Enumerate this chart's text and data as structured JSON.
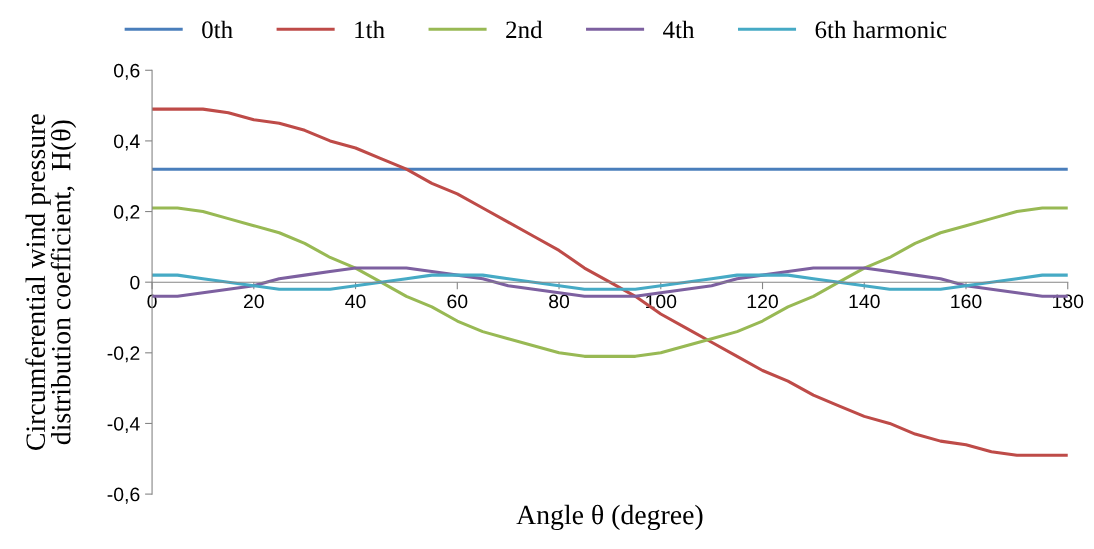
{
  "chart_data": {
    "type": "line",
    "xlabel": "Angle θ (degree)",
    "ylabel": "Circumferential wind pressure\ndistribution coefficient,  H(θ)",
    "x": [
      0,
      5,
      10,
      15,
      20,
      25,
      30,
      35,
      40,
      45,
      50,
      55,
      60,
      65,
      70,
      75,
      80,
      85,
      90,
      95,
      100,
      105,
      110,
      115,
      120,
      125,
      130,
      135,
      140,
      145,
      150,
      155,
      160,
      165,
      170,
      175,
      180
    ],
    "series": [
      {
        "name": "0th",
        "color": "#4a7ebb",
        "values": [
          0.32,
          0.32,
          0.32,
          0.32,
          0.32,
          0.32,
          0.32,
          0.32,
          0.32,
          0.32,
          0.32,
          0.32,
          0.32,
          0.32,
          0.32,
          0.32,
          0.32,
          0.32,
          0.32,
          0.32,
          0.32,
          0.32,
          0.32,
          0.32,
          0.32,
          0.32,
          0.32,
          0.32,
          0.32,
          0.32,
          0.32,
          0.32,
          0.32,
          0.32,
          0.32,
          0.32,
          0.32
        ]
      },
      {
        "name": "1th",
        "color": "#be4b48",
        "values": [
          0.49,
          0.49,
          0.49,
          0.48,
          0.46,
          0.45,
          0.43,
          0.4,
          0.38,
          0.35,
          0.32,
          0.28,
          0.25,
          0.21,
          0.17,
          0.13,
          0.09,
          0.04,
          0.0,
          -0.04,
          -0.09,
          -0.13,
          -0.17,
          -0.21,
          -0.25,
          -0.28,
          -0.32,
          -0.35,
          -0.38,
          -0.4,
          -0.43,
          -0.45,
          -0.46,
          -0.48,
          -0.49,
          -0.49,
          -0.49
        ]
      },
      {
        "name": "2nd",
        "color": "#98b954",
        "values": [
          0.21,
          0.21,
          0.2,
          0.18,
          0.16,
          0.14,
          0.11,
          0.07,
          0.04,
          0.0,
          -0.04,
          -0.07,
          -0.11,
          -0.14,
          -0.16,
          -0.18,
          -0.2,
          -0.21,
          -0.21,
          -0.21,
          -0.2,
          -0.18,
          -0.16,
          -0.14,
          -0.11,
          -0.07,
          -0.04,
          0.0,
          0.04,
          0.07,
          0.11,
          0.14,
          0.16,
          0.18,
          0.2,
          0.21,
          0.21
        ]
      },
      {
        "name": "4th",
        "color": "#7d60a0",
        "values": [
          -0.04,
          -0.04,
          -0.03,
          -0.02,
          -0.01,
          0.01,
          0.02,
          0.03,
          0.04,
          0.04,
          0.04,
          0.03,
          0.02,
          0.01,
          -0.01,
          -0.02,
          -0.03,
          -0.04,
          -0.04,
          -0.04,
          -0.03,
          -0.02,
          -0.01,
          0.01,
          0.02,
          0.03,
          0.04,
          0.04,
          0.04,
          0.03,
          0.02,
          0.01,
          -0.01,
          -0.02,
          -0.03,
          -0.04,
          -0.04
        ]
      },
      {
        "name": "6th harmonic",
        "color": "#46aac5",
        "values": [
          0.02,
          0.02,
          0.01,
          0.0,
          -0.01,
          -0.02,
          -0.02,
          -0.02,
          -0.01,
          0.0,
          0.01,
          0.02,
          0.02,
          0.02,
          0.01,
          0.0,
          -0.01,
          -0.02,
          -0.02,
          -0.02,
          -0.01,
          0.0,
          0.01,
          0.02,
          0.02,
          0.02,
          0.01,
          0.0,
          -0.01,
          -0.02,
          -0.02,
          -0.02,
          -0.01,
          0.0,
          0.01,
          0.02,
          0.02
        ]
      }
    ],
    "xlim": [
      0,
      180
    ],
    "xticks": [
      0,
      20,
      40,
      60,
      80,
      100,
      120,
      140,
      160,
      180
    ],
    "ylim": [
      -0.6,
      0.6
    ],
    "yticks": [
      {
        "value": -0.6,
        "label": "-0,6"
      },
      {
        "value": -0.4,
        "label": "-0,4"
      },
      {
        "value": -0.2,
        "label": "-0,2"
      },
      0,
      {
        "value": 0.2,
        "label": "0,2"
      },
      {
        "value": 0.4,
        "label": "0,4"
      },
      {
        "value": 0.6,
        "label": "0,6"
      }
    ],
    "grid": false,
    "legend": "top",
    "marker": "none",
    "line_style": "solid"
  }
}
